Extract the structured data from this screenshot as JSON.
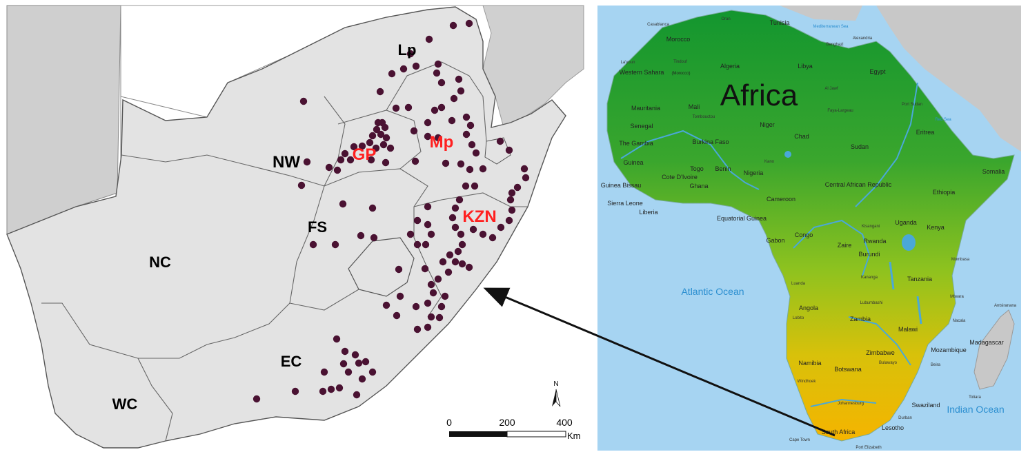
{
  "left_map": {
    "province_labels": [
      {
        "text": "Lp",
        "color": "#000000"
      },
      {
        "text": "NW",
        "color": "#000000"
      },
      {
        "text": "GP",
        "color": "#ff2020"
      },
      {
        "text": "Mp",
        "color": "#ff2020"
      },
      {
        "text": "FS",
        "color": "#000000"
      },
      {
        "text": "KZN",
        "color": "#ff2020"
      },
      {
        "text": "NC",
        "color": "#000000"
      },
      {
        "text": "EC",
        "color": "#000000"
      },
      {
        "text": "WC",
        "color": "#000000"
      }
    ],
    "north_label": "N",
    "scale": {
      "ticks": [
        "0",
        "200",
        "400"
      ],
      "unit": "Km"
    },
    "colors": {
      "land": "#e3e3e3",
      "border": "#555555",
      "sample_point": "#4a1232"
    }
  },
  "right_map": {
    "title": "Africa",
    "ocean_labels": [
      "Atlantic Ocean",
      "Indian Ocean",
      "Mediterranean Sea",
      "Red Sea"
    ],
    "country_labels": [
      "Tunisia",
      "Morocco",
      "Algeria",
      "Libya",
      "Egypt",
      "Western Sahara",
      "(Morocco)",
      "Mauritania",
      "Mali",
      "Niger",
      "Chad",
      "Sudan",
      "Eritrea",
      "Senegal",
      "The Gambia",
      "Burkina Faso",
      "Guinea",
      "Guinea Bissau",
      "Sierra Leone",
      "Liberia",
      "Cote D'Ivoire",
      "Ghana",
      "Togo",
      "Benin",
      "Nigeria",
      "Central African Republic",
      "Ethiopia",
      "Somalia",
      "Cameroon",
      "Equatorial Guinea",
      "Gabon",
      "Congo",
      "Zaire",
      "Uganda",
      "Kenya",
      "Rwanda",
      "Burundi",
      "Tanzania",
      "Angola",
      "Zambia",
      "Malawi",
      "Mozambique",
      "Zimbabwe",
      "Namibia",
      "Botswana",
      "Madagascar",
      "Swaziland",
      "Lesotho",
      "South Africa"
    ],
    "city_labels": [
      "Casablanca",
      "Oran",
      "Alexandria",
      "Benghazi",
      "Tindouf",
      "La'youn",
      "Al Jawf",
      "Faya-Largeau",
      "Port Sudan",
      "Tombouctou",
      "Kano",
      "Kisangani",
      "Kananga",
      "Luanda",
      "Lobito",
      "Lubumbashi",
      "Mombasa",
      "Mtwara",
      "Antsiranana",
      "Nacala",
      "Beira",
      "Bulawayo",
      "Windhoek",
      "Toliara",
      "Johannesburg",
      "Durban",
      "Cape Town",
      "Port Elizabeth"
    ],
    "colors": {
      "ocean": "#a6d4f2",
      "land_top": "#1a9a3a",
      "land_mid": "#8dc21f",
      "land_bottom": "#f5b700",
      "outside_land": "#c8c8c8",
      "rivers": "#4aa8d8"
    }
  }
}
